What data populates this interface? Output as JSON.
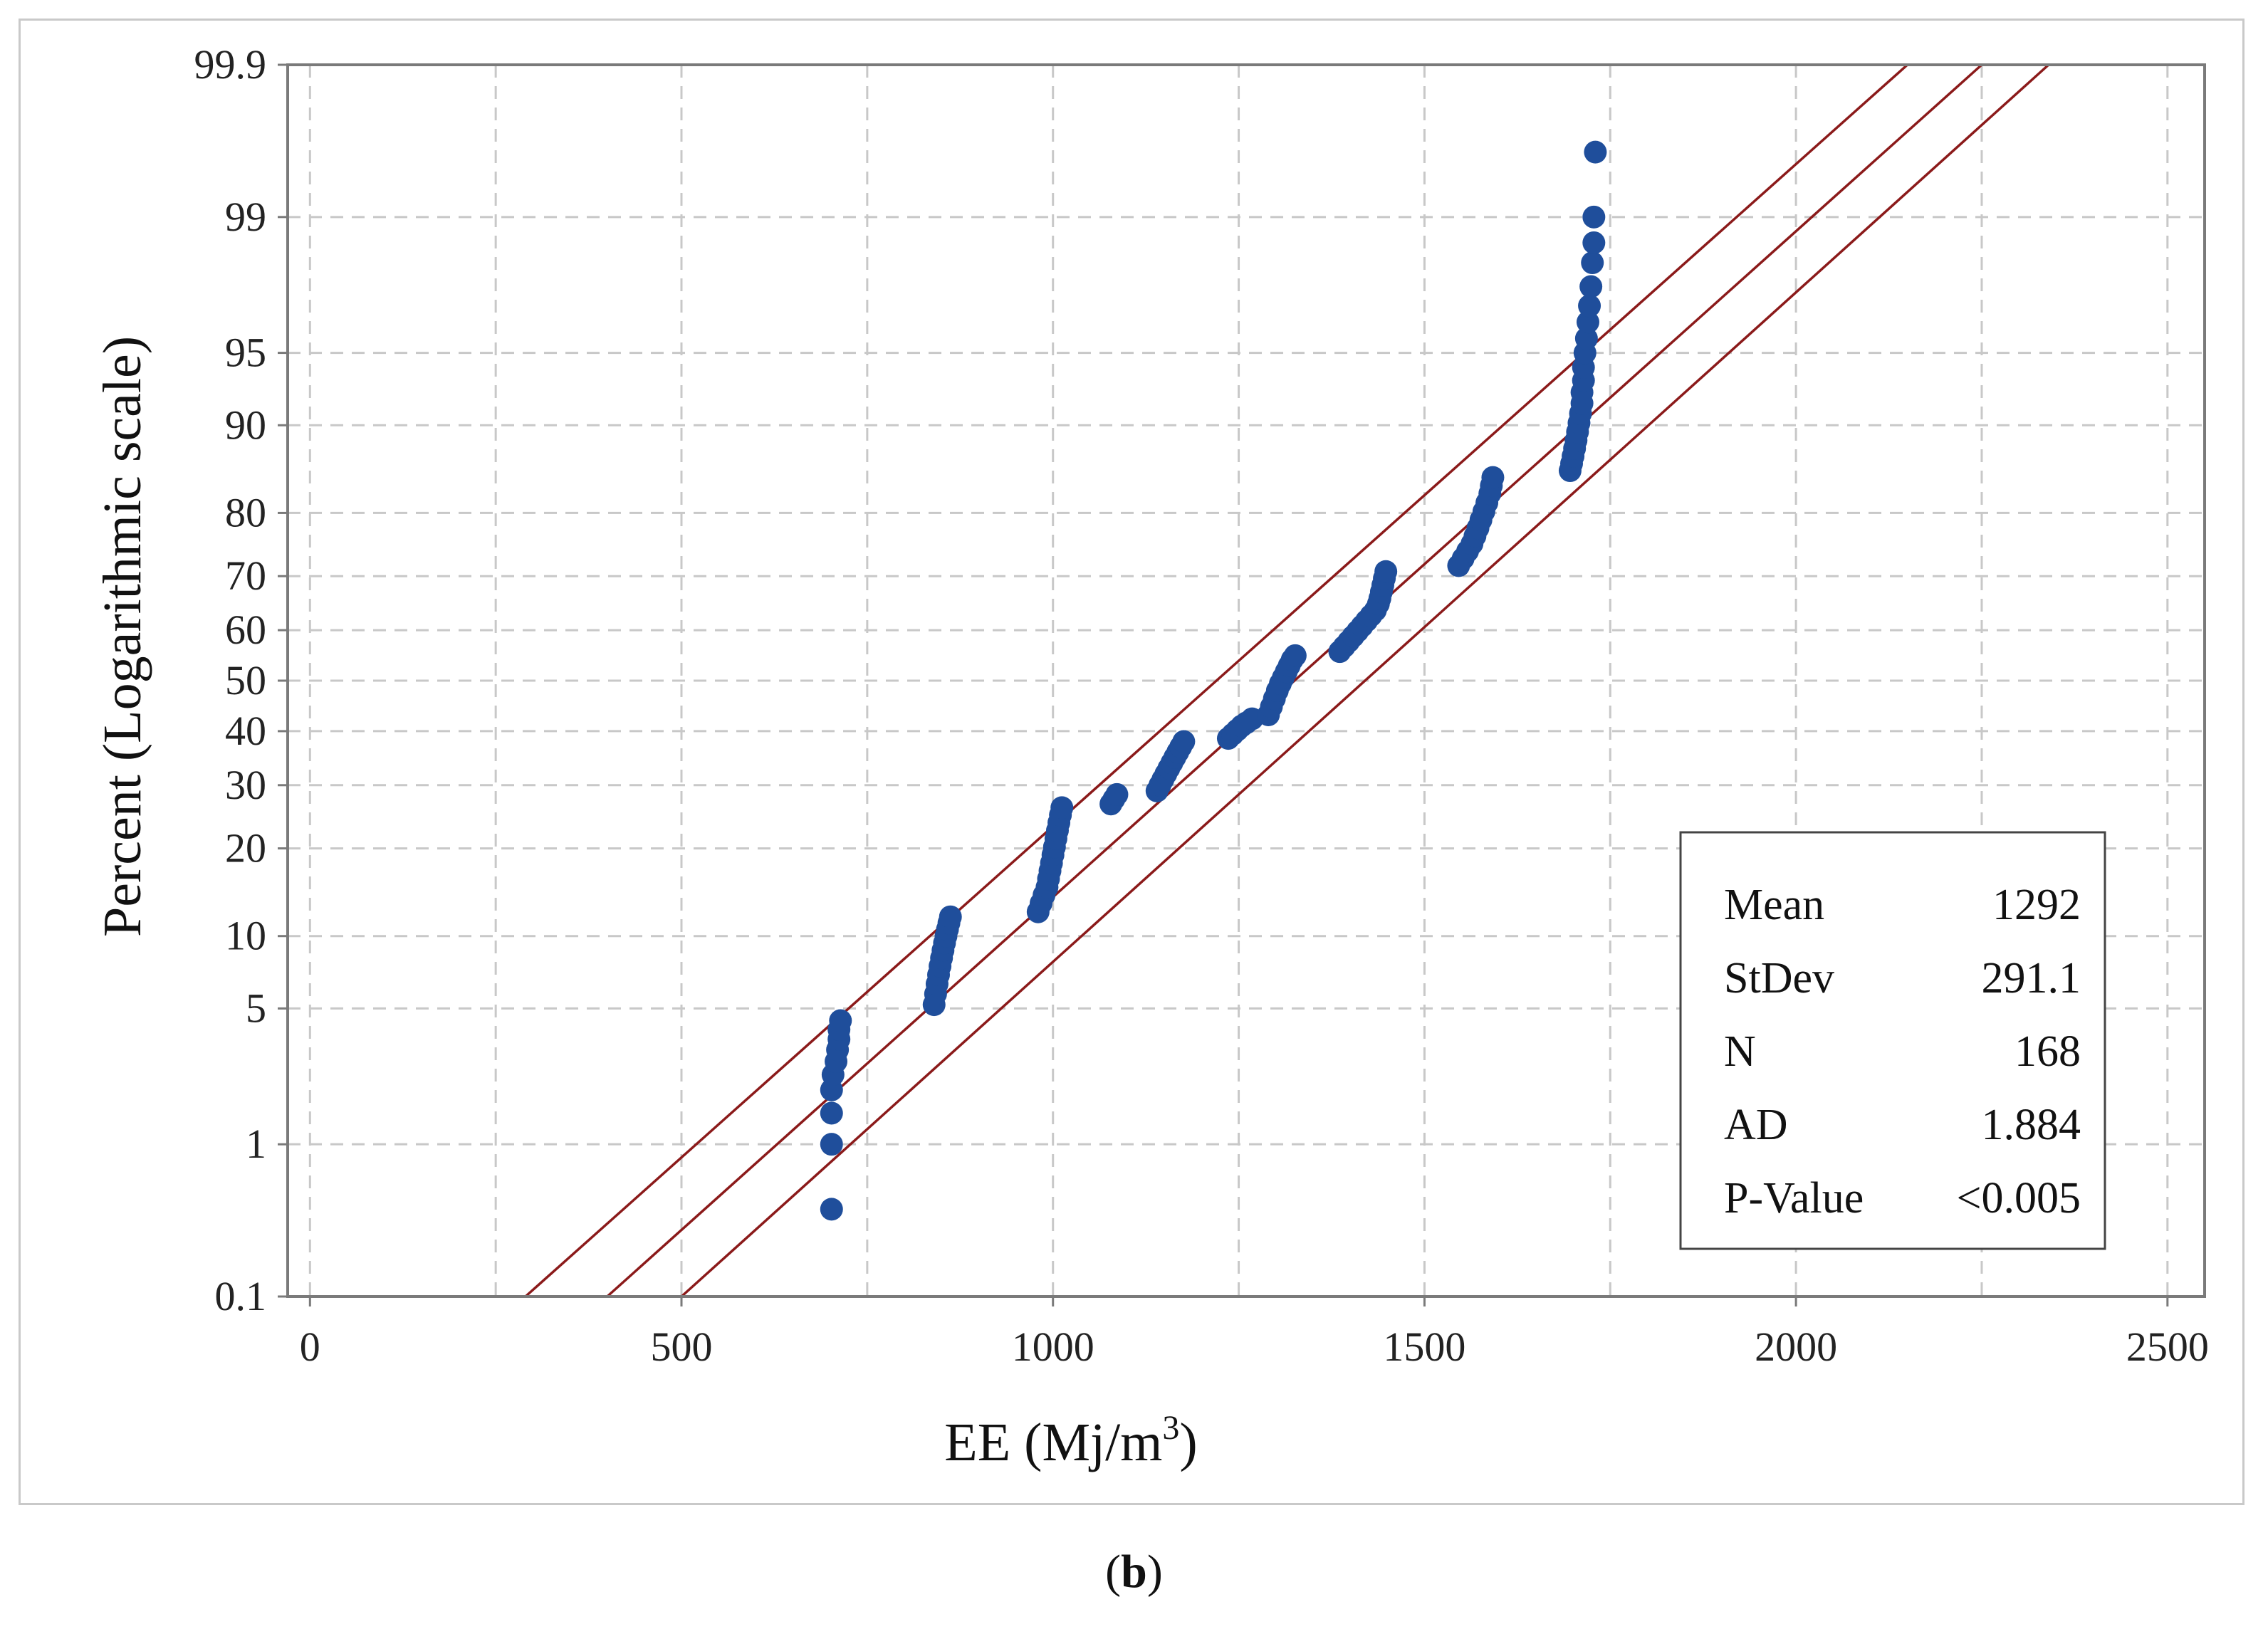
{
  "chart_data": {
    "type": "scatter",
    "subtype": "probability-plot",
    "xlabel": "EE (Mj/m",
    "xlabel_superscript": "3",
    "xlabel_close": ")",
    "ylabel": "Percent (Logarithmic scale)",
    "x_ticks": [
      0,
      500,
      1000,
      1500,
      2000,
      2500
    ],
    "x_tick_labels": [
      "0",
      "500",
      "1000",
      "1500",
      "2000",
      "2500"
    ],
    "xlim": [
      -30,
      2550
    ],
    "y_ticks": [
      0.1,
      1,
      5,
      10,
      20,
      30,
      40,
      50,
      60,
      70,
      80,
      90,
      95,
      99,
      99.9
    ],
    "y_tick_labels": [
      "0.1",
      "1",
      "5",
      "10",
      "20",
      "30",
      "40",
      "50",
      "60",
      "70",
      "80",
      "90",
      "95",
      "99",
      "99.9"
    ],
    "ylim": [
      0.1,
      99.9
    ],
    "fit": {
      "mean": 1292,
      "stdev": 291.1,
      "band_offset": 105
    },
    "lines": [
      {
        "name": "upper-ci",
        "points": [
          [
            290,
            0.1
          ],
          [
            2150,
            99.9
          ]
        ]
      },
      {
        "name": "fit",
        "points": [
          [
            400,
            0.1
          ],
          [
            2250,
            99.9
          ]
        ]
      },
      {
        "name": "lower-ci",
        "points": [
          [
            500,
            0.1
          ],
          [
            2340,
            99.9
          ]
        ]
      }
    ],
    "points": [
      [
        702,
        0.4
      ],
      [
        702,
        1.0
      ],
      [
        702,
        1.5
      ],
      [
        702,
        2.0
      ],
      [
        704,
        2.4
      ],
      [
        708,
        2.8
      ],
      [
        710,
        3.2
      ],
      [
        712,
        3.6
      ],
      [
        712,
        4.0
      ],
      [
        714,
        4.4
      ],
      [
        840,
        5.2
      ],
      [
        842,
        5.8
      ],
      [
        844,
        6.4
      ],
      [
        846,
        7.0
      ],
      [
        848,
        7.6
      ],
      [
        850,
        8.2
      ],
      [
        852,
        8.8
      ],
      [
        854,
        9.4
      ],
      [
        856,
        10.0
      ],
      [
        858,
        10.6
      ],
      [
        860,
        11.2
      ],
      [
        862,
        11.8
      ],
      [
        980,
        12.3
      ],
      [
        984,
        13.2
      ],
      [
        988,
        14.1
      ],
      [
        992,
        15.0
      ],
      [
        994,
        16.0
      ],
      [
        996,
        17.0
      ],
      [
        998,
        18.0
      ],
      [
        1000,
        19.1
      ],
      [
        1002,
        20.2
      ],
      [
        1004,
        21.4
      ],
      [
        1006,
        22.6
      ],
      [
        1008,
        23.8
      ],
      [
        1010,
        25.0
      ],
      [
        1012,
        26.2
      ],
      [
        1078,
        26.8
      ],
      [
        1082,
        27.6
      ],
      [
        1086,
        28.4
      ],
      [
        1140,
        29.0
      ],
      [
        1144,
        30.0
      ],
      [
        1148,
        31.0
      ],
      [
        1152,
        32.0
      ],
      [
        1156,
        33.0
      ],
      [
        1160,
        34.0
      ],
      [
        1164,
        35.0
      ],
      [
        1168,
        36.0
      ],
      [
        1172,
        37.0
      ],
      [
        1176,
        38.0
      ],
      [
        1236,
        38.6
      ],
      [
        1242,
        39.4
      ],
      [
        1248,
        40.2
      ],
      [
        1254,
        41.0
      ],
      [
        1260,
        41.6
      ],
      [
        1268,
        42.4
      ],
      [
        1290,
        43.2
      ],
      [
        1294,
        44.8
      ],
      [
        1298,
        46.4
      ],
      [
        1302,
        48.0
      ],
      [
        1306,
        49.4
      ],
      [
        1310,
        50.6
      ],
      [
        1314,
        51.8
      ],
      [
        1318,
        53.0
      ],
      [
        1322,
        54.2
      ],
      [
        1326,
        55.0
      ],
      [
        1386,
        55.8
      ],
      [
        1392,
        56.8
      ],
      [
        1398,
        57.8
      ],
      [
        1404,
        58.8
      ],
      [
        1410,
        59.8
      ],
      [
        1416,
        60.8
      ],
      [
        1422,
        61.8
      ],
      [
        1428,
        62.8
      ],
      [
        1434,
        63.8
      ],
      [
        1438,
        65.0
      ],
      [
        1440,
        66.0
      ],
      [
        1442,
        67.2
      ],
      [
        1444,
        68.4
      ],
      [
        1446,
        69.6
      ],
      [
        1448,
        70.8
      ],
      [
        1546,
        71.8
      ],
      [
        1552,
        73.0
      ],
      [
        1558,
        74.2
      ],
      [
        1564,
        75.4
      ],
      [
        1568,
        76.6
      ],
      [
        1572,
        77.8
      ],
      [
        1576,
        79.0
      ],
      [
        1580,
        80.2
      ],
      [
        1584,
        81.4
      ],
      [
        1588,
        82.6
      ],
      [
        1590,
        83.6
      ],
      [
        1592,
        84.6
      ],
      [
        1696,
        85.4
      ],
      [
        1698,
        86.2
      ],
      [
        1700,
        87.0
      ],
      [
        1702,
        87.8
      ],
      [
        1704,
        88.6
      ],
      [
        1706,
        89.4
      ],
      [
        1708,
        90.2
      ],
      [
        1710,
        91.0
      ],
      [
        1712,
        91.8
      ],
      [
        1712,
        92.6
      ],
      [
        1714,
        93.4
      ],
      [
        1714,
        94.2
      ],
      [
        1716,
        95.0
      ],
      [
        1718,
        95.7
      ],
      [
        1720,
        96.4
      ],
      [
        1722,
        97.0
      ],
      [
        1724,
        97.6
      ],
      [
        1726,
        98.2
      ],
      [
        1728,
        98.6
      ],
      [
        1728,
        99.0
      ],
      [
        1730,
        99.6
      ]
    ],
    "stats": [
      {
        "label": "Mean",
        "value": "1292"
      },
      {
        "label": "StDev",
        "value": "291.1"
      },
      {
        "label": "N",
        "value": "168"
      },
      {
        "label": "AD",
        "value": "1.884"
      },
      {
        "label": "P-Value",
        "value": "<0.005"
      }
    ],
    "colors": {
      "points": "#1f4e9b",
      "lines": "#8b1a1a",
      "grid": "#c8c8c8",
      "axis": "#7a7a7a"
    }
  },
  "caption": {
    "open": "(",
    "letter": "b",
    "close": ")"
  }
}
